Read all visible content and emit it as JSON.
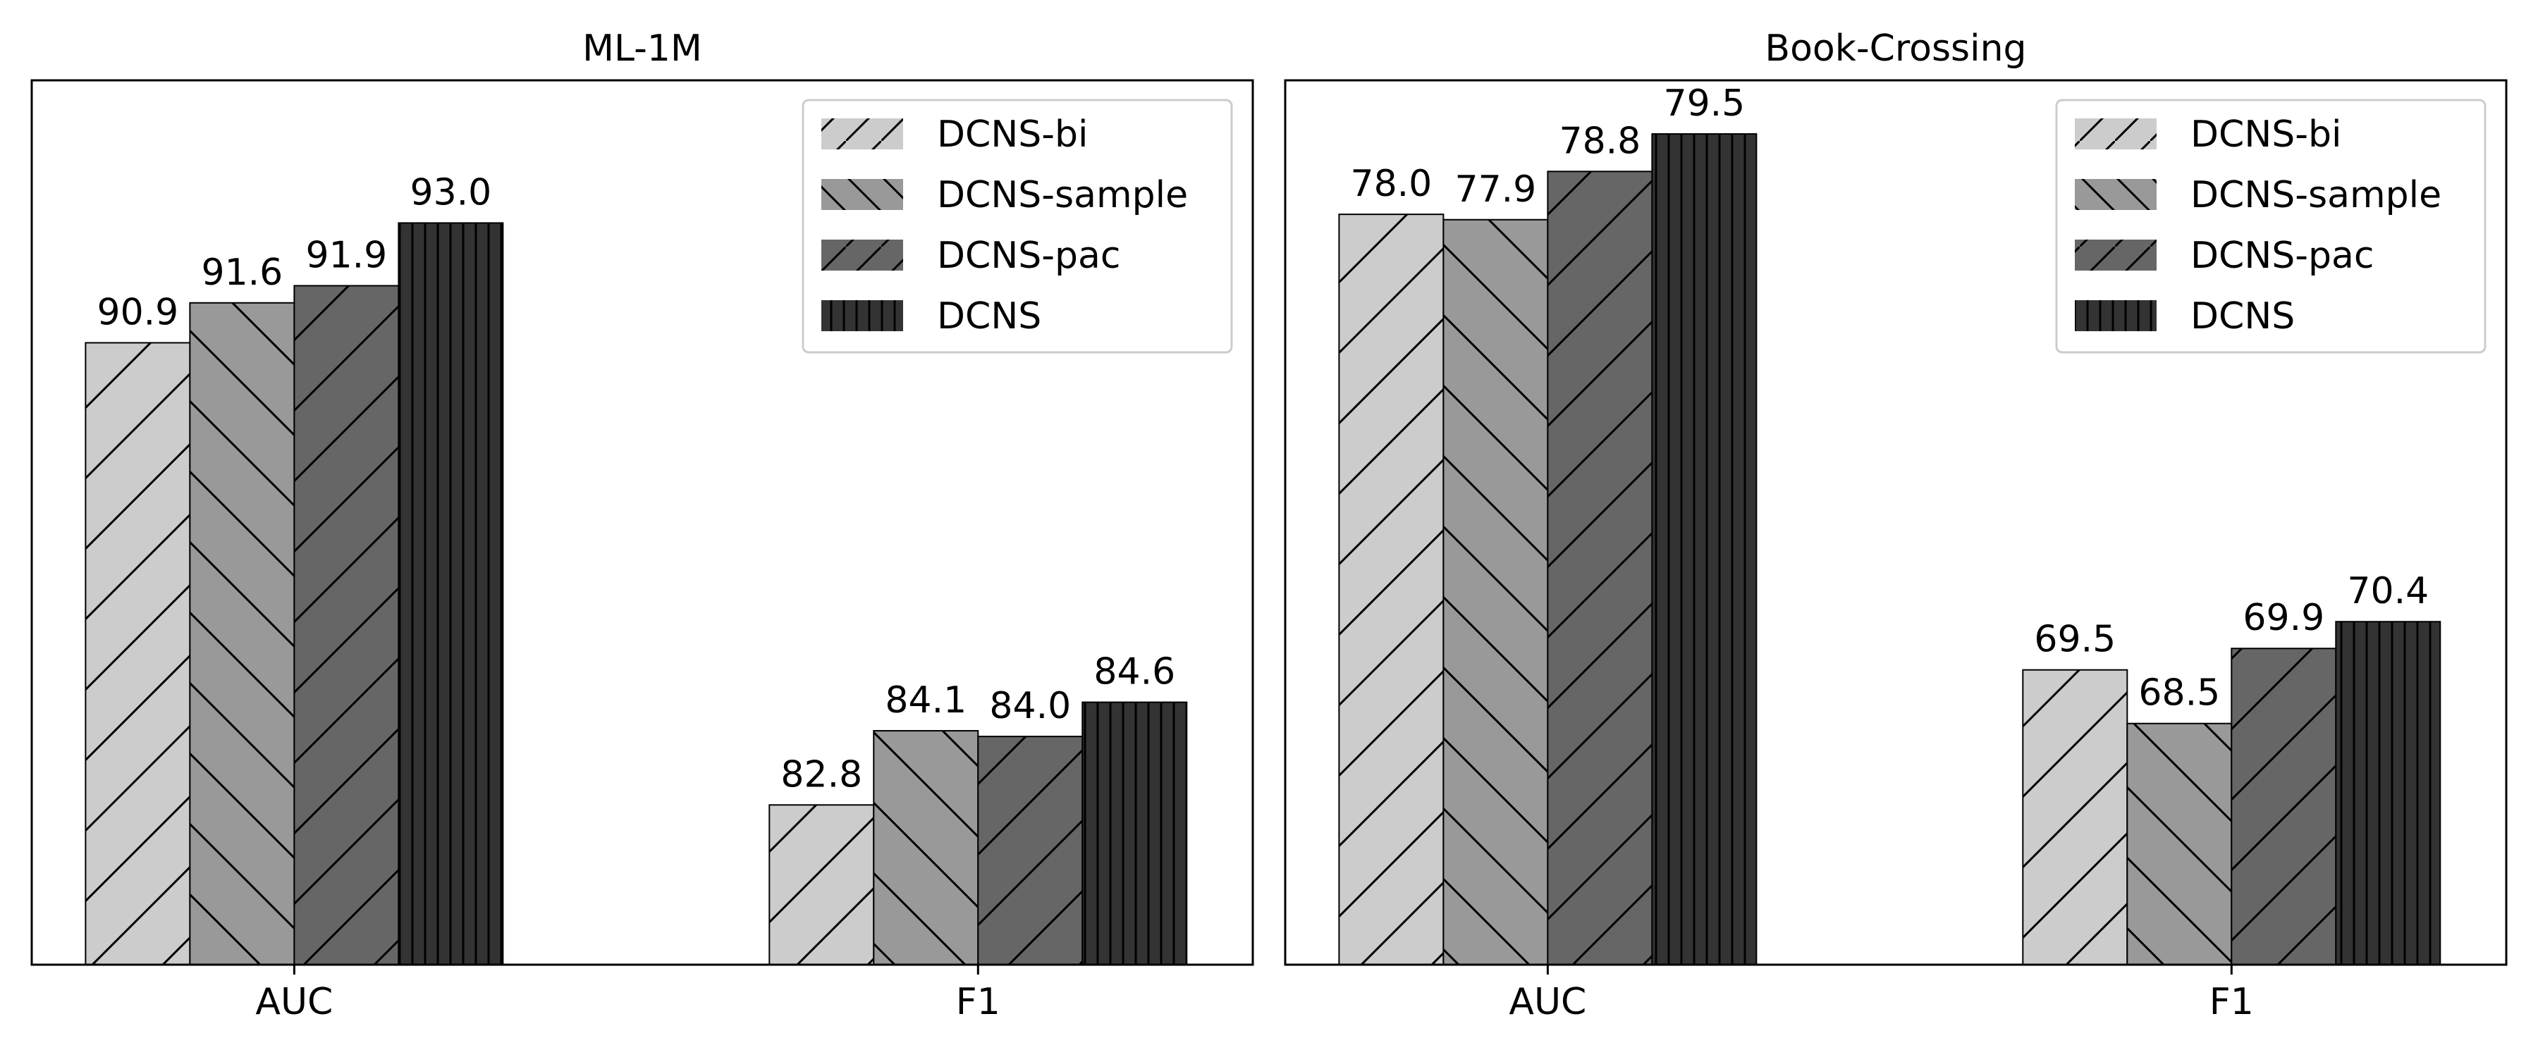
{
  "chart_data": [
    {
      "type": "bar",
      "title": "ML-1M",
      "categories": [
        "AUC",
        "F1"
      ],
      "xlabel": "",
      "ylabel": "",
      "series": [
        {
          "name": "DCNS-bi",
          "values": [
            90.9,
            82.8
          ]
        },
        {
          "name": "DCNS-sample",
          "values": [
            91.6,
            84.1
          ]
        },
        {
          "name": "DCNS-pac",
          "values": [
            91.9,
            84.0
          ]
        },
        {
          "name": "DCNS",
          "values": [
            93.0,
            84.6
          ]
        }
      ],
      "value_labels": [
        [
          "90.9",
          "82.8"
        ],
        [
          "91.6",
          "84.1"
        ],
        [
          "91.9",
          "84.0"
        ],
        [
          "93.0",
          "84.6"
        ]
      ],
      "ylim": [
        80,
        95.5
      ],
      "y_ticks_visible": false,
      "grid": false,
      "legend": "top-right"
    },
    {
      "type": "bar",
      "title": "Book-Crossing",
      "categories": [
        "AUC",
        "F1"
      ],
      "xlabel": "",
      "ylabel": "",
      "series": [
        {
          "name": "DCNS-bi",
          "values": [
            78.0,
            69.5
          ]
        },
        {
          "name": "DCNS-sample",
          "values": [
            77.9,
            68.5
          ]
        },
        {
          "name": "DCNS-pac",
          "values": [
            78.8,
            69.9
          ]
        },
        {
          "name": "DCNS",
          "values": [
            79.5,
            70.4
          ]
        }
      ],
      "value_labels": [
        [
          "78.0",
          "69.5"
        ],
        [
          "77.9",
          "68.5"
        ],
        [
          "78.8",
          "69.9"
        ],
        [
          "79.5",
          "70.4"
        ]
      ],
      "ylim": [
        64,
        80.5
      ],
      "y_ticks_visible": false,
      "grid": false,
      "legend": "top-right"
    }
  ],
  "style": {
    "series_colors": [
      "#cccccc",
      "#999999",
      "#666666",
      "#333333"
    ],
    "series_hatches": [
      "forward-diagonal",
      "backward-diagonal",
      "forward-diagonal",
      "vertical"
    ],
    "edge_color": "#000000",
    "background": "#ffffff"
  }
}
